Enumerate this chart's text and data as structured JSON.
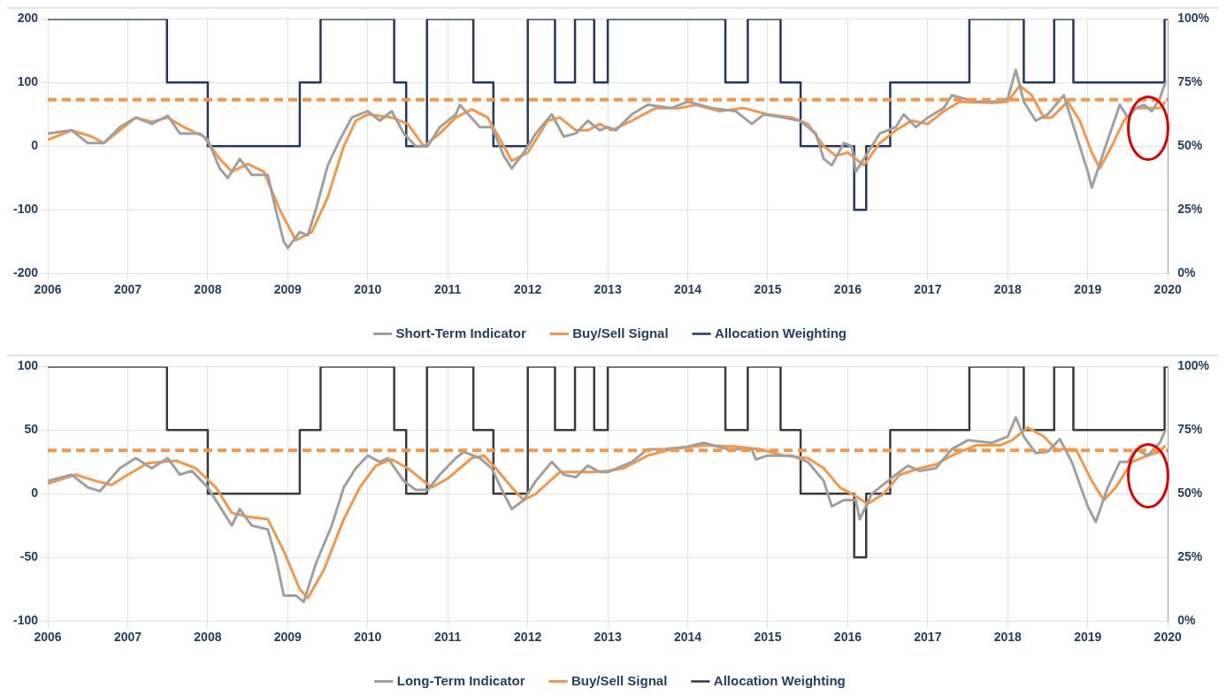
{
  "chart_data": [
    {
      "type": "line",
      "xlim": [
        2006,
        2020
      ],
      "xticks": [
        2006,
        2007,
        2008,
        2009,
        2010,
        2011,
        2012,
        2013,
        2014,
        2015,
        2016,
        2017,
        2018,
        2019,
        2020
      ],
      "ylim": [
        -200,
        200
      ],
      "yticks": [
        -200,
        -100,
        0,
        100,
        200
      ],
      "y2lim": [
        0,
        100
      ],
      "y2ticks": [
        {
          "value": 0,
          "label": "0%"
        },
        {
          "value": 25,
          "label": "25%"
        },
        {
          "value": 50,
          "label": "50%"
        },
        {
          "value": 75,
          "label": "75%"
        },
        {
          "value": 100,
          "label": "100%"
        }
      ],
      "grid": true,
      "legend": "bottom",
      "marker": "none",
      "series": [
        {
          "name": "Short-Term Indicator",
          "color": "#a0a0a0",
          "x": [
            2006.0,
            2006.3,
            2006.5,
            2006.7,
            2006.9,
            2007.1,
            2007.3,
            2007.5,
            2007.65,
            2007.9,
            2008.0,
            2008.15,
            2008.25,
            2008.4,
            2008.55,
            2008.75,
            2008.85,
            2008.95,
            2009.0,
            2009.15,
            2009.25,
            2009.35,
            2009.5,
            2009.65,
            2009.8,
            2010.0,
            2010.15,
            2010.3,
            2010.45,
            2010.6,
            2010.75,
            2010.9,
            2011.1,
            2011.15,
            2011.4,
            2011.55,
            2011.7,
            2011.8,
            2011.95,
            2012.1,
            2012.3,
            2012.45,
            2012.6,
            2012.75,
            2012.9,
            2013.0,
            2013.1,
            2013.3,
            2013.5,
            2013.8,
            2014.0,
            2014.3,
            2014.6,
            2014.8,
            2014.95,
            2015.2,
            2015.4,
            2015.6,
            2015.7,
            2015.8,
            2015.95,
            2016.05,
            2016.1,
            2016.25,
            2016.4,
            2016.6,
            2016.7,
            2016.85,
            2017.0,
            2017.2,
            2017.3,
            2017.6,
            2017.9,
            2018.0,
            2018.1,
            2018.2,
            2018.35,
            2018.5,
            2018.7,
            2018.85,
            2019.0,
            2019.05,
            2019.25,
            2019.4,
            2019.5,
            2019.6,
            2019.7,
            2019.8,
            2019.9,
            2019.97
          ],
          "values": [
            20,
            25,
            5,
            5,
            30,
            45,
            35,
            48,
            20,
            20,
            10,
            -35,
            -50,
            -20,
            -45,
            -45,
            -100,
            -150,
            -160,
            -135,
            -140,
            -100,
            -30,
            10,
            45,
            55,
            40,
            55,
            20,
            0,
            0,
            30,
            50,
            65,
            30,
            30,
            -15,
            -35,
            -10,
            20,
            50,
            15,
            20,
            40,
            25,
            30,
            25,
            50,
            65,
            60,
            70,
            60,
            55,
            35,
            50,
            45,
            40,
            20,
            -20,
            -30,
            5,
            0,
            -40,
            -10,
            20,
            30,
            50,
            30,
            45,
            60,
            80,
            70,
            70,
            75,
            120,
            70,
            40,
            50,
            80,
            20,
            -40,
            -65,
            10,
            65,
            45,
            60,
            65,
            55,
            75,
            100
          ]
        },
        {
          "name": "Buy/Sell Signal",
          "color": "#f79646",
          "x": [
            2006.0,
            2006.3,
            2006.55,
            2006.7,
            2006.9,
            2007.1,
            2007.3,
            2007.5,
            2007.7,
            2007.95,
            2008.15,
            2008.3,
            2008.5,
            2008.7,
            2008.9,
            2009.1,
            2009.3,
            2009.5,
            2009.7,
            2009.85,
            2010.0,
            2010.3,
            2010.5,
            2010.7,
            2010.9,
            2011.1,
            2011.3,
            2011.5,
            2011.7,
            2011.8,
            2012.0,
            2012.25,
            2012.4,
            2012.6,
            2012.75,
            2012.9,
            2013.05,
            2013.3,
            2013.6,
            2013.9,
            2014.1,
            2014.4,
            2014.7,
            2015.0,
            2015.3,
            2015.5,
            2015.7,
            2015.85,
            2016.0,
            2016.2,
            2016.4,
            2016.6,
            2016.8,
            2017.0,
            2017.2,
            2017.4,
            2017.8,
            2018.0,
            2018.15,
            2018.3,
            2018.45,
            2018.55,
            2018.75,
            2018.9,
            2019.05,
            2019.15,
            2019.3,
            2019.45,
            2019.6,
            2019.8,
            2019.9,
            2019.97
          ],
          "values": [
            10,
            25,
            15,
            5,
            25,
            45,
            38,
            45,
            30,
            15,
            -20,
            -40,
            -28,
            -40,
            -100,
            -148,
            -135,
            -80,
            0,
            40,
            50,
            45,
            35,
            0,
            20,
            45,
            58,
            45,
            0,
            -23,
            -10,
            40,
            45,
            25,
            25,
            35,
            25,
            40,
            60,
            60,
            65,
            55,
            60,
            50,
            45,
            35,
            0,
            -15,
            -10,
            -30,
            5,
            25,
            40,
            35,
            55,
            70,
            68,
            70,
            95,
            80,
            45,
            45,
            70,
            40,
            -10,
            -35,
            0,
            40,
            60,
            60,
            60,
            70
          ]
        },
        {
          "name": "Allocation Weighting",
          "color": "#1f3864",
          "type": "step",
          "axis": "y2",
          "x": [
            2006,
            2007.49,
            2008,
            2009.15,
            2009.41,
            2010.33,
            2010.48,
            2010.74,
            2011.32,
            2011.57,
            2012,
            2012.34,
            2012.59,
            2012.83,
            2013.0,
            2014.47,
            2014.75,
            2015.16,
            2015.41,
            2016.08,
            2016.23,
            2016.53,
            2017.52,
            2018.2,
            2018.58,
            2018.82,
            2019.96,
            2020
          ],
          "values": [
            100,
            75,
            50,
            75,
            100,
            75,
            50,
            100,
            75,
            50,
            100,
            75,
            100,
            75,
            100,
            75,
            100,
            75,
            50,
            25,
            50,
            75,
            100,
            75,
            100,
            75,
            100,
            100
          ]
        }
      ],
      "ref_lines": [
        {
          "axis": "y",
          "value": 73,
          "color": "#f79646",
          "line_style": "dashed"
        }
      ]
    },
    {
      "type": "line",
      "xlim": [
        2006,
        2020
      ],
      "xticks": [
        2006,
        2007,
        2008,
        2009,
        2010,
        2011,
        2012,
        2013,
        2014,
        2015,
        2016,
        2017,
        2018,
        2019,
        2020
      ],
      "ylim": [
        -100,
        100
      ],
      "yticks": [
        -100,
        -50,
        0,
        50,
        100
      ],
      "y2lim": [
        0,
        100
      ],
      "y2ticks": [
        {
          "value": 0,
          "label": "0%"
        },
        {
          "value": 25,
          "label": "25%"
        },
        {
          "value": 50,
          "label": "50%"
        },
        {
          "value": 75,
          "label": "75%"
        },
        {
          "value": 100,
          "label": "100%"
        }
      ],
      "grid": true,
      "legend": "bottom",
      "marker": "none",
      "series": [
        {
          "name": "Long-Term Indicator",
          "color": "#a0a0a0",
          "x": [
            2006.0,
            2006.3,
            2006.5,
            2006.65,
            2006.9,
            2007.1,
            2007.3,
            2007.5,
            2007.65,
            2007.8,
            2008.0,
            2008.2,
            2008.3,
            2008.4,
            2008.55,
            2008.75,
            2008.85,
            2008.95,
            2009.1,
            2009.2,
            2009.35,
            2009.55,
            2009.7,
            2009.85,
            2010.0,
            2010.15,
            2010.25,
            2010.45,
            2010.6,
            2010.75,
            2010.9,
            2011.1,
            2011.2,
            2011.4,
            2011.55,
            2011.7,
            2011.8,
            2011.95,
            2012.1,
            2012.3,
            2012.45,
            2012.6,
            2012.75,
            2012.9,
            2013.0,
            2013.3,
            2013.5,
            2013.7,
            2014.0,
            2014.2,
            2014.5,
            2014.8,
            2014.85,
            2015.0,
            2015.3,
            2015.5,
            2015.7,
            2015.8,
            2015.95,
            2016.1,
            2016.15,
            2016.3,
            2016.5,
            2016.6,
            2016.75,
            2016.9,
            2017.1,
            2017.3,
            2017.5,
            2017.8,
            2018.0,
            2018.1,
            2018.2,
            2018.35,
            2018.5,
            2018.65,
            2018.8,
            2019.0,
            2019.1,
            2019.25,
            2019.4,
            2019.5,
            2019.6,
            2019.75,
            2019.9,
            2019.97
          ],
          "values": [
            10,
            15,
            5,
            2,
            20,
            28,
            20,
            28,
            15,
            18,
            5,
            -15,
            -25,
            -12,
            -25,
            -28,
            -50,
            -80,
            -80,
            -85,
            -55,
            -25,
            5,
            20,
            30,
            25,
            28,
            10,
            3,
            3,
            15,
            28,
            33,
            28,
            20,
            0,
            -12,
            -5,
            10,
            25,
            15,
            13,
            22,
            17,
            17,
            25,
            35,
            35,
            37,
            40,
            35,
            35,
            27,
            30,
            30,
            25,
            10,
            -10,
            -5,
            -5,
            -20,
            0,
            10,
            15,
            22,
            18,
            20,
            35,
            42,
            40,
            45,
            60,
            45,
            32,
            33,
            43,
            25,
            -10,
            -22,
            5,
            25,
            25,
            35,
            30,
            40,
            50
          ]
        },
        {
          "name": "Buy/Sell Signal",
          "color": "#f79646",
          "x": [
            2006.0,
            2006.35,
            2006.6,
            2006.8,
            2007.0,
            2007.25,
            2007.6,
            2007.85,
            2008.1,
            2008.3,
            2008.5,
            2008.75,
            2008.95,
            2009.15,
            2009.25,
            2009.45,
            2009.7,
            2009.9,
            2010.1,
            2010.3,
            2010.5,
            2010.8,
            2011.0,
            2011.3,
            2011.45,
            2011.6,
            2011.8,
            2011.95,
            2012.1,
            2012.4,
            2012.6,
            2012.8,
            2013.0,
            2013.2,
            2013.5,
            2013.8,
            2014.2,
            2014.6,
            2014.9,
            2015.2,
            2015.5,
            2015.7,
            2015.9,
            2016.1,
            2016.25,
            2016.45,
            2016.65,
            2016.9,
            2017.1,
            2017.3,
            2017.6,
            2017.9,
            2018.05,
            2018.25,
            2018.45,
            2018.6,
            2018.85,
            2019.05,
            2019.2,
            2019.35,
            2019.55,
            2019.75,
            2019.9,
            2019.97
          ],
          "values": [
            8,
            15,
            10,
            7,
            15,
            24,
            26,
            20,
            5,
            -15,
            -18,
            -20,
            -45,
            -75,
            -82,
            -60,
            -20,
            5,
            22,
            27,
            20,
            5,
            12,
            28,
            30,
            20,
            5,
            -5,
            0,
            17,
            17,
            17,
            18,
            20,
            30,
            35,
            38,
            37,
            35,
            30,
            28,
            20,
            5,
            -2,
            -8,
            0,
            15,
            20,
            23,
            30,
            38,
            38,
            42,
            52,
            45,
            35,
            35,
            10,
            -5,
            5,
            25,
            30,
            33,
            38
          ]
        },
        {
          "name": "Allocation Weighting",
          "color": "#3a3a3a",
          "type": "step",
          "axis": "y2",
          "x": [
            2006,
            2007.49,
            2008,
            2009.15,
            2009.41,
            2010.33,
            2010.48,
            2010.74,
            2011.32,
            2011.57,
            2012,
            2012.34,
            2012.59,
            2012.83,
            2013.0,
            2014.47,
            2014.75,
            2015.16,
            2015.41,
            2016.08,
            2016.23,
            2016.53,
            2017.52,
            2018.2,
            2018.58,
            2018.82,
            2019.96,
            2020
          ],
          "values": [
            100,
            75,
            50,
            75,
            100,
            75,
            50,
            100,
            75,
            50,
            100,
            75,
            100,
            75,
            100,
            75,
            100,
            75,
            50,
            25,
            50,
            75,
            100,
            75,
            100,
            75,
            100,
            100
          ]
        }
      ],
      "ref_lines": [
        {
          "axis": "y",
          "value": 34,
          "color": "#f79646",
          "line_style": "dashed"
        }
      ]
    }
  ]
}
